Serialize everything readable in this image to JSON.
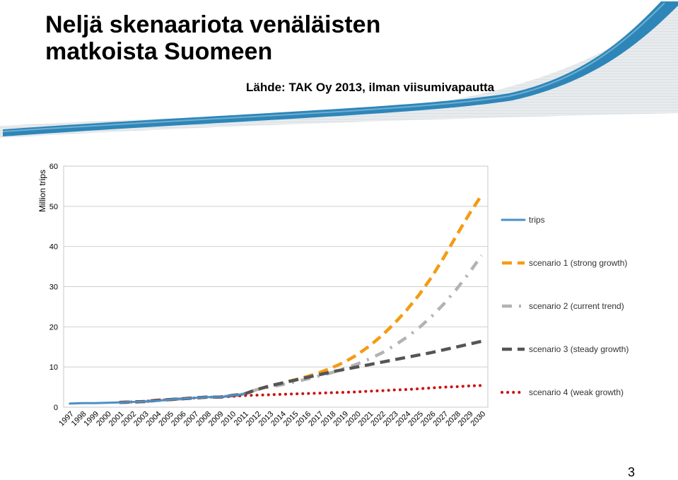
{
  "slide": {
    "title_line1": "Neljä skenaariota venäläisten",
    "title_line2": "matkoista Suomeen",
    "subtitle": "Lähde: TAK Oy 2013, ilman viisumivapautta",
    "page_number": "3"
  },
  "colors": {
    "banner": "#2e86b8",
    "banner_light": "#cfd8de"
  },
  "chart_data": {
    "type": "line",
    "ylabel": "Million trips",
    "xlabel": "",
    "ylim": [
      0,
      60
    ],
    "yticks": [
      0,
      10,
      20,
      30,
      40,
      50,
      60
    ],
    "x": [
      "1997",
      "1998",
      "1999",
      "2000",
      "2001",
      "2002",
      "2003",
      "2004",
      "2005",
      "2006",
      "2007",
      "2008",
      "2009",
      "2010",
      "2011",
      "2012",
      "2013",
      "2014",
      "2015",
      "2016",
      "2017",
      "2018",
      "2019",
      "2020",
      "2021",
      "2022",
      "2023",
      "2024",
      "2025",
      "2026",
      "2027",
      "2028",
      "2029",
      "2030"
    ],
    "grid": true,
    "legend_position": "right",
    "series": [
      {
        "name": "trips",
        "color": "#4a90c8",
        "style": "solid",
        "values": [
          0.9,
          1.0,
          1.0,
          1.1,
          1.2,
          1.3,
          1.4,
          1.6,
          1.9,
          2.1,
          2.3,
          2.5,
          2.5,
          2.9,
          3.3,
          null,
          null,
          null,
          null,
          null,
          null,
          null,
          null,
          null,
          null,
          null,
          null,
          null,
          null,
          null,
          null,
          null,
          null,
          null
        ]
      },
      {
        "name": "scenario 1 (strong growth)",
        "color": "#f39c12",
        "style": "dashed",
        "values": [
          null,
          null,
          null,
          null,
          1.2,
          1.3,
          1.4,
          1.7,
          1.9,
          2.1,
          2.3,
          2.5,
          2.5,
          2.9,
          3.3,
          4.4,
          5.2,
          6.0,
          6.8,
          7.6,
          8.6,
          9.8,
          11.2,
          13.0,
          15.2,
          17.8,
          20.8,
          24.2,
          28.0,
          32.4,
          37.4,
          42.8,
          48.0,
          52.8
        ]
      },
      {
        "name": "scenario 2 (current trend)",
        "color": "#b3b3b3",
        "style": "dashdot",
        "values": [
          null,
          null,
          null,
          null,
          1.2,
          1.3,
          1.4,
          1.7,
          1.9,
          2.1,
          2.3,
          2.5,
          2.5,
          2.9,
          3.3,
          4.4,
          5.0,
          5.6,
          6.3,
          7.0,
          7.8,
          8.6,
          9.6,
          10.7,
          12.0,
          13.5,
          15.3,
          17.4,
          19.8,
          22.6,
          25.8,
          29.4,
          33.4,
          37.8
        ]
      },
      {
        "name": "scenario 3 (steady growth)",
        "color": "#555555",
        "style": "dashed",
        "values": [
          null,
          null,
          null,
          null,
          1.2,
          1.3,
          1.4,
          1.7,
          1.9,
          2.1,
          2.3,
          2.5,
          2.5,
          2.9,
          3.3,
          4.4,
          5.3,
          6.0,
          6.7,
          7.4,
          8.1,
          8.8,
          9.4,
          10.0,
          10.6,
          11.2,
          11.8,
          12.4,
          13.0,
          13.6,
          14.3,
          15.0,
          15.7,
          16.4
        ]
      },
      {
        "name": "scenario 4 (weak growth)",
        "color": "#cc1111",
        "style": "dotted",
        "values": [
          null,
          null,
          null,
          null,
          1.2,
          1.3,
          1.4,
          1.7,
          1.9,
          2.1,
          2.3,
          2.5,
          2.5,
          2.7,
          2.9,
          3.0,
          3.1,
          3.2,
          3.3,
          3.4,
          3.5,
          3.6,
          3.7,
          3.8,
          4.0,
          4.1,
          4.3,
          4.4,
          4.6,
          4.8,
          5.0,
          5.1,
          5.3,
          5.4
        ]
      }
    ]
  }
}
